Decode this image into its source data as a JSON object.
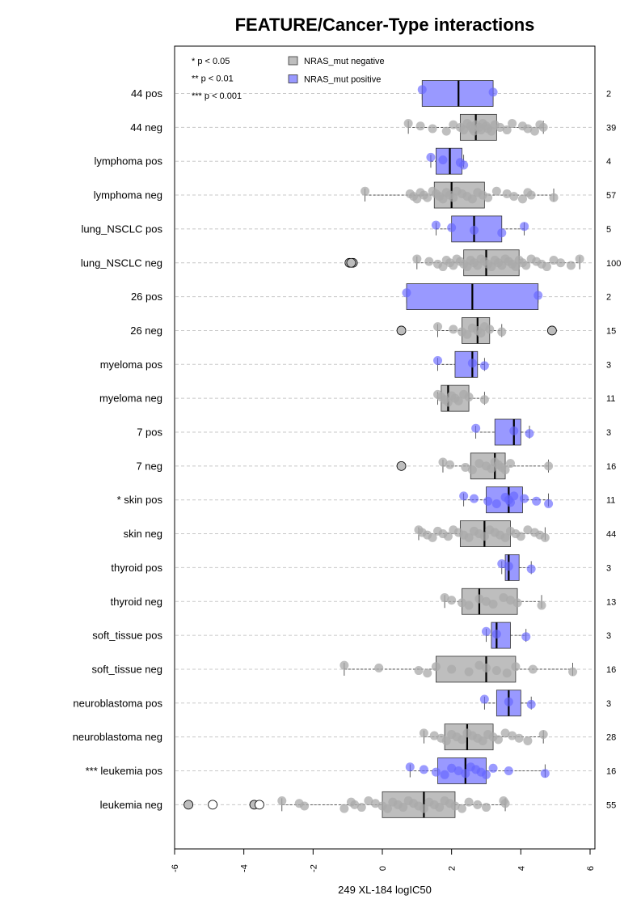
{
  "chart_data": {
    "type": "boxplot",
    "title": "FEATURE/Cancer-Type interactions",
    "xlabel": "249 XL-184 logIC50",
    "xlim": [
      -6,
      6
    ],
    "x_ticks": [
      "-6",
      "-4",
      "-2",
      "0",
      "2",
      "4",
      "6"
    ],
    "legend_placement": "top-left",
    "significance_legend": [
      "* p < 0.05",
      "** p < 0.01",
      "*** p < 0.001"
    ],
    "legend": [
      {
        "name": "NRAS_mut negative",
        "color": "#bebebe"
      },
      {
        "name": "NRAS_mut positive",
        "color": "#9999ff"
      }
    ],
    "grid": "horizontal dashed",
    "colors": {
      "negative_box": "#bebebe",
      "positive_box": "#9999ff",
      "negative_point": "#a9a9a9",
      "positive_point": "#6666ff"
    },
    "groups": [
      {
        "label": "44 pos",
        "n": "2",
        "status": "pos",
        "box": {
          "q1": 1.15,
          "median": 2.2,
          "q3": 3.2,
          "whisker_low": 1.15,
          "whisker_high": 3.2
        },
        "points": [
          1.15,
          3.2
        ],
        "outliers": []
      },
      {
        "label": "44 neg",
        "n": "39",
        "status": "neg",
        "box": {
          "q1": 2.25,
          "median": 2.7,
          "q3": 3.3,
          "whisker_low": 0.75,
          "whisker_high": 4.65
        },
        "points": [
          0.75,
          1.1,
          1.45,
          1.85,
          2.05,
          2.25,
          2.35,
          2.45,
          2.55,
          2.6,
          2.65,
          2.7,
          2.8,
          2.85,
          2.9,
          3.0,
          3.05,
          3.15,
          3.25,
          3.4,
          3.6,
          3.75,
          4.05,
          4.2,
          4.4,
          4.55,
          4.65
        ],
        "outliers": []
      },
      {
        "label": "lymphoma pos",
        "n": "4",
        "status": "pos",
        "box": {
          "q1": 1.55,
          "median": 1.95,
          "q3": 2.3,
          "whisker_low": 1.4,
          "whisker_high": 2.35
        },
        "points": [
          1.4,
          1.75,
          2.25,
          2.35
        ],
        "outliers": []
      },
      {
        "label": "lymphoma neg",
        "n": "57",
        "status": "neg",
        "box": {
          "q1": 1.5,
          "median": 2.0,
          "q3": 2.95,
          "whisker_low": -0.5,
          "whisker_high": 4.95
        },
        "points": [
          -0.5,
          0.8,
          0.9,
          1.0,
          1.1,
          1.2,
          1.3,
          1.45,
          1.55,
          1.65,
          1.75,
          1.85,
          1.95,
          2.05,
          2.15,
          2.3,
          2.45,
          2.6,
          2.75,
          2.9,
          3.05,
          3.3,
          3.6,
          3.8,
          4.05,
          4.2,
          4.3,
          4.95
        ],
        "outliers": []
      },
      {
        "label": "lung_NSCLC pos",
        "n": "5",
        "status": "pos",
        "box": {
          "q1": 2.0,
          "median": 2.65,
          "q3": 3.45,
          "whisker_low": 1.55,
          "whisker_high": 4.1
        },
        "points": [
          1.55,
          2.0,
          2.65,
          3.45,
          4.1
        ],
        "outliers": []
      },
      {
        "label": "lung_NSCLC neg",
        "n": "100",
        "status": "neg",
        "box": {
          "q1": 2.35,
          "median": 3.0,
          "q3": 3.95,
          "whisker_low": 1.0,
          "whisker_high": 5.7
        },
        "points": [
          1.0,
          1.35,
          1.6,
          1.75,
          1.85,
          1.95,
          2.05,
          2.15,
          2.25,
          2.35,
          2.45,
          2.55,
          2.65,
          2.75,
          2.85,
          2.95,
          3.05,
          3.15,
          3.25,
          3.35,
          3.45,
          3.55,
          3.65,
          3.75,
          3.85,
          3.95,
          4.05,
          4.15,
          4.3,
          4.45,
          4.6,
          4.75,
          4.95,
          5.15,
          5.45,
          5.7
        ],
        "outliers": [
          -0.95,
          -0.85,
          -0.9
        ]
      },
      {
        "label": "26 pos",
        "n": "2",
        "status": "pos",
        "box": {
          "q1": 0.7,
          "median": 2.6,
          "q3": 4.5,
          "whisker_low": 0.7,
          "whisker_high": 4.5
        },
        "points": [
          0.7,
          4.5
        ],
        "outliers": []
      },
      {
        "label": "26 neg",
        "n": "15",
        "status": "neg",
        "box": {
          "q1": 2.3,
          "median": 2.75,
          "q3": 3.1,
          "whisker_low": 1.6,
          "whisker_high": 3.45
        },
        "points": [
          1.6,
          2.05,
          2.3,
          2.45,
          2.6,
          2.75,
          2.85,
          2.95,
          3.1,
          3.45
        ],
        "outliers": [
          0.55,
          4.9
        ]
      },
      {
        "label": "myeloma pos",
        "n": "3",
        "status": "pos",
        "box": {
          "q1": 2.1,
          "median": 2.6,
          "q3": 2.75,
          "whisker_low": 1.6,
          "whisker_high": 2.95
        },
        "points": [
          1.6,
          2.6,
          2.95
        ],
        "outliers": []
      },
      {
        "label": "myeloma neg",
        "n": "11",
        "status": "neg",
        "box": {
          "q1": 1.7,
          "median": 1.9,
          "q3": 2.5,
          "whisker_low": 1.6,
          "whisker_high": 2.95
        },
        "points": [
          1.6,
          1.7,
          1.8,
          1.9,
          2.0,
          2.1,
          2.2,
          2.35,
          2.5,
          2.95
        ],
        "outliers": []
      },
      {
        "label": "7 pos",
        "n": "3",
        "status": "pos",
        "box": {
          "q1": 3.25,
          "median": 3.8,
          "q3": 4.0,
          "whisker_low": 2.7,
          "whisker_high": 4.25
        },
        "points": [
          2.7,
          3.8,
          4.25
        ],
        "outliers": []
      },
      {
        "label": "7 neg",
        "n": "16",
        "status": "neg",
        "box": {
          "q1": 2.55,
          "median": 3.25,
          "q3": 3.55,
          "whisker_low": 1.75,
          "whisker_high": 4.8
        },
        "points": [
          1.75,
          1.95,
          2.4,
          2.6,
          2.8,
          3.0,
          3.15,
          3.25,
          3.35,
          3.45,
          3.55,
          3.7,
          4.8
        ],
        "outliers": [
          0.55
        ]
      },
      {
        "label": "* skin pos",
        "n": "11",
        "status": "pos",
        "box": {
          "q1": 3.0,
          "median": 3.65,
          "q3": 4.05,
          "whisker_low": 2.35,
          "whisker_high": 4.8
        },
        "points": [
          2.35,
          2.65,
          3.05,
          3.3,
          3.55,
          3.65,
          3.7,
          3.8,
          4.1,
          4.45,
          4.8
        ],
        "outliers": []
      },
      {
        "label": "skin neg",
        "n": "44",
        "status": "neg",
        "box": {
          "q1": 2.25,
          "median": 2.95,
          "q3": 3.7,
          "whisker_low": 1.05,
          "whisker_high": 4.7
        },
        "points": [
          1.05,
          1.15,
          1.3,
          1.45,
          1.6,
          1.75,
          1.9,
          2.05,
          2.2,
          2.35,
          2.5,
          2.65,
          2.8,
          2.95,
          3.1,
          3.25,
          3.4,
          3.55,
          3.7,
          3.85,
          4.0,
          4.2,
          4.4,
          4.55,
          4.7
        ],
        "outliers": []
      },
      {
        "label": "thyroid pos",
        "n": "3",
        "status": "pos",
        "box": {
          "q1": 3.55,
          "median": 3.65,
          "q3": 3.95,
          "whisker_low": 3.45,
          "whisker_high": 4.3
        },
        "points": [
          3.45,
          3.65,
          4.3
        ],
        "outliers": []
      },
      {
        "label": "thyroid neg",
        "n": "13",
        "status": "neg",
        "box": {
          "q1": 2.3,
          "median": 2.8,
          "q3": 3.9,
          "whisker_low": 1.8,
          "whisker_high": 4.6
        },
        "points": [
          1.8,
          2.0,
          2.3,
          2.5,
          2.8,
          3.0,
          3.2,
          3.5,
          3.7,
          3.9,
          4.6
        ],
        "outliers": []
      },
      {
        "label": "soft_tissue pos",
        "n": "3",
        "status": "pos",
        "box": {
          "q1": 3.15,
          "median": 3.3,
          "q3": 3.7,
          "whisker_low": 3.0,
          "whisker_high": 4.15
        },
        "points": [
          3.0,
          3.3,
          4.15
        ],
        "outliers": []
      },
      {
        "label": "soft_tissue neg",
        "n": "16",
        "status": "neg",
        "box": {
          "q1": 1.55,
          "median": 3.0,
          "q3": 3.85,
          "whisker_low": -1.1,
          "whisker_high": 5.5
        },
        "points": [
          -1.1,
          -0.1,
          1.05,
          1.3,
          1.55,
          2.0,
          2.5,
          2.8,
          3.0,
          3.3,
          3.6,
          3.85,
          4.35,
          5.5
        ],
        "outliers": []
      },
      {
        "label": "neuroblastoma pos",
        "n": "3",
        "status": "pos",
        "box": {
          "q1": 3.3,
          "median": 3.65,
          "q3": 4.0,
          "whisker_low": 2.95,
          "whisker_high": 4.3
        },
        "points": [
          2.95,
          3.65,
          4.3
        ],
        "outliers": []
      },
      {
        "label": "neuroblastoma neg",
        "n": "28",
        "status": "neg",
        "box": {
          "q1": 1.8,
          "median": 2.45,
          "q3": 3.2,
          "whisker_low": 1.2,
          "whisker_high": 4.65
        },
        "points": [
          1.2,
          1.5,
          1.7,
          1.85,
          2.0,
          2.15,
          2.3,
          2.45,
          2.6,
          2.75,
          2.9,
          3.05,
          3.2,
          3.35,
          3.55,
          3.75,
          3.95,
          4.2,
          4.65
        ],
        "outliers": []
      },
      {
        "label": "*** leukemia pos",
        "n": "16",
        "status": "pos",
        "box": {
          "q1": 1.6,
          "median": 2.4,
          "q3": 3.0,
          "whisker_low": 0.8,
          "whisker_high": 4.7
        },
        "points": [
          0.8,
          1.2,
          1.55,
          1.8,
          2.0,
          2.2,
          2.4,
          2.55,
          2.7,
          2.85,
          3.0,
          3.2,
          3.65,
          4.7
        ],
        "outliers": []
      },
      {
        "label": "leukemia neg",
        "n": "55",
        "status": "neg",
        "box": {
          "q1": 0.0,
          "median": 1.2,
          "q3": 2.1,
          "whisker_low": -2.9,
          "whisker_high": 3.55
        },
        "points": [
          -2.9,
          -2.4,
          -2.25,
          -1.1,
          -0.9,
          -0.8,
          -0.6,
          -0.4,
          -0.2,
          0.0,
          0.15,
          0.3,
          0.45,
          0.6,
          0.75,
          0.9,
          1.05,
          1.2,
          1.35,
          1.5,
          1.65,
          1.8,
          1.95,
          2.1,
          2.3,
          2.5,
          2.75,
          3.0,
          3.5,
          3.55
        ],
        "outliers": [
          -5.6,
          -4.9,
          -3.7,
          -3.55
        ]
      }
    ]
  }
}
